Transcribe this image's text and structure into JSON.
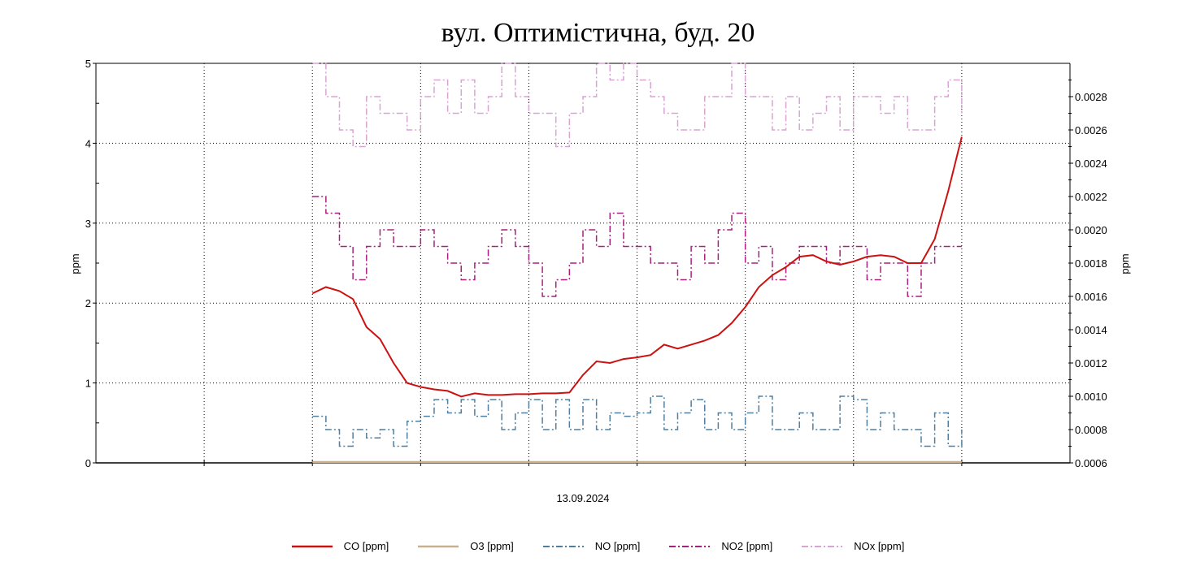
{
  "chart_data": {
    "type": "line",
    "title": "вул. Оптимістична, буд. 20",
    "xlabel": "13.09.2024",
    "ylabel_left": "ppm",
    "ylabel_right": "ppm",
    "xlim": [
      -16,
      56
    ],
    "ylim_left": [
      0,
      5
    ],
    "ylim_right": [
      0.0006,
      0.003
    ],
    "left_ticks": [
      "0",
      "1",
      "2",
      "3",
      "4",
      "5"
    ],
    "right_ticks": [
      "0.0006",
      "0.0008",
      "0.0010",
      "0.0012",
      "0.0014",
      "0.0016",
      "0.0018",
      "0.0020",
      "0.0022",
      "0.0024",
      "0.0026",
      "0.0028"
    ],
    "grid": true,
    "legend_position": "bottom",
    "series": [
      {
        "name": "CO [ppm]",
        "axis": "left",
        "color": "#cc1111",
        "dash": "",
        "values": [
          2.12,
          2.2,
          2.15,
          2.05,
          1.7,
          1.55,
          1.25,
          1.0,
          0.95,
          0.92,
          0.9,
          0.83,
          0.87,
          0.85,
          0.85,
          0.86,
          0.86,
          0.87,
          0.87,
          0.88,
          1.1,
          1.27,
          1.25,
          1.3,
          1.32,
          1.35,
          1.48,
          1.43,
          1.48,
          1.53,
          1.6,
          1.75,
          1.95,
          2.2,
          2.35,
          2.45,
          2.58,
          2.6,
          2.52,
          2.48,
          2.52,
          2.58,
          2.6,
          2.58,
          2.5,
          2.5,
          2.8,
          3.4,
          4.08
        ]
      },
      {
        "name": "O3 [ppm]",
        "axis": "left",
        "color": "#c8b08e",
        "dash": "",
        "values": [
          0.01,
          0.01,
          0.01,
          0.01,
          0.01,
          0.01,
          0.01,
          0.01,
          0.01,
          0.01,
          0.01,
          0.01,
          0.01,
          0.01,
          0.01,
          0.01,
          0.01,
          0.01,
          0.01,
          0.01,
          0.01,
          0.01,
          0.01,
          0.01,
          0.01,
          0.01,
          0.01,
          0.01,
          0.01,
          0.01,
          0.01,
          0.01,
          0.01,
          0.01,
          0.01,
          0.01,
          0.01,
          0.01,
          0.01,
          0.01,
          0.01,
          0.01,
          0.01,
          0.01,
          0.01,
          0.01,
          0.01,
          0.01,
          0.01
        ]
      },
      {
        "name": "NO [ppm]",
        "axis": "right",
        "color": "#4f7fa0",
        "dash": "8 3 2 3",
        "values": [
          0.00088,
          0.0008,
          0.0007,
          0.0008,
          0.00075,
          0.0008,
          0.0007,
          0.00085,
          0.00088,
          0.00098,
          0.0009,
          0.00098,
          0.00088,
          0.00098,
          0.0008,
          0.0009,
          0.00098,
          0.0008,
          0.00098,
          0.0008,
          0.00098,
          0.0008,
          0.0009,
          0.00088,
          0.0009,
          0.001,
          0.0008,
          0.0009,
          0.00098,
          0.0008,
          0.0009,
          0.0008,
          0.0009,
          0.001,
          0.0008,
          0.0008,
          0.0009,
          0.0008,
          0.0008,
          0.001,
          0.00098,
          0.0008,
          0.0009,
          0.0008,
          0.0008,
          0.0007,
          0.0009,
          0.0007,
          0.0008
        ]
      },
      {
        "name": "NO2 [ppm]",
        "axis": "right",
        "color": "#a8207f",
        "dash": "8 3 2 3",
        "values": [
          0.0022,
          0.0021,
          0.0019,
          0.0017,
          0.0019,
          0.002,
          0.0019,
          0.0019,
          0.002,
          0.0019,
          0.0018,
          0.0017,
          0.0018,
          0.0019,
          0.002,
          0.0019,
          0.0018,
          0.0016,
          0.0017,
          0.0018,
          0.002,
          0.0019,
          0.0021,
          0.0019,
          0.0019,
          0.0018,
          0.0018,
          0.0017,
          0.0019,
          0.0018,
          0.002,
          0.0021,
          0.0018,
          0.0019,
          0.0017,
          0.0018,
          0.0019,
          0.0019,
          0.0018,
          0.0019,
          0.0019,
          0.0017,
          0.0018,
          0.0018,
          0.0016,
          0.0018,
          0.0019,
          0.0019,
          0.0019
        ]
      },
      {
        "name": "NOx [ppm]",
        "axis": "right",
        "color": "#d8a4d4",
        "dash": "8 3 2 3",
        "values": [
          0.003,
          0.0028,
          0.0026,
          0.0025,
          0.0028,
          0.0027,
          0.0027,
          0.0026,
          0.0028,
          0.0029,
          0.0027,
          0.0029,
          0.0027,
          0.0028,
          0.003,
          0.0028,
          0.0027,
          0.0027,
          0.0025,
          0.0027,
          0.0028,
          0.003,
          0.0029,
          0.003,
          0.0029,
          0.0028,
          0.0027,
          0.0026,
          0.0026,
          0.0028,
          0.0028,
          0.003,
          0.0028,
          0.0028,
          0.0026,
          0.0028,
          0.0026,
          0.0027,
          0.0028,
          0.0026,
          0.0028,
          0.0028,
          0.0027,
          0.0028,
          0.0026,
          0.0026,
          0.0028,
          0.0029,
          0.0027
        ]
      }
    ]
  }
}
